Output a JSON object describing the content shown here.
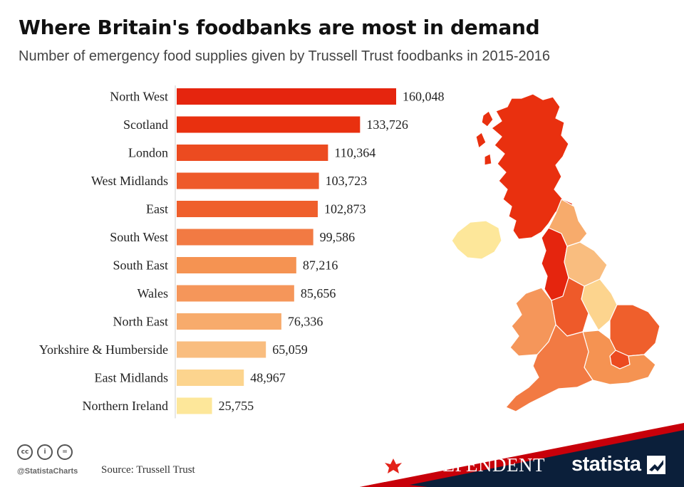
{
  "header": {
    "title": "Where Britain's foodbanks are most in demand",
    "subtitle": "Number of emergency food supplies given by Trussell Trust foodbanks in 2015-2016"
  },
  "chart_data": {
    "type": "bar",
    "orientation": "horizontal",
    "title": "Where Britain's foodbanks are most in demand",
    "subtitle": "Number of emergency food supplies given by Trussell Trust foodbanks in 2015-2016",
    "xlabel": "",
    "ylabel": "",
    "categories": [
      "North West",
      "Scotland",
      "London",
      "West Midlands",
      "East",
      "South West",
      "South East",
      "Wales",
      "North East",
      "Yorkshire & Humberside",
      "East Midlands",
      "Northern Ireland"
    ],
    "values": [
      160048,
      133726,
      110364,
      103723,
      102873,
      99586,
      87216,
      85656,
      76336,
      65059,
      48967,
      25755
    ],
    "value_labels": [
      "160,048",
      "133,726",
      "110,364",
      "103,723",
      "102,873",
      "99,586",
      "87,216",
      "85,656",
      "76,336",
      "65,059",
      "48,967",
      "25,755"
    ],
    "colors": [
      "#e5250e",
      "#e9300f",
      "#ec4b20",
      "#ee5a2a",
      "#ef5f2c",
      "#f27a43",
      "#f59352",
      "#f5965a",
      "#f7ab6c",
      "#f9bd7f",
      "#fcd48e",
      "#fde79a"
    ],
    "xlim": [
      0,
      160048
    ],
    "grid": false,
    "legend": "none"
  },
  "map": {
    "regions": [
      {
        "name": "Scotland",
        "color": "#e9300f"
      },
      {
        "name": "Northern Ireland",
        "color": "#fde79a"
      },
      {
        "name": "North West",
        "color": "#e5250e"
      },
      {
        "name": "North East",
        "color": "#f7ab6c"
      },
      {
        "name": "Yorkshire & Humberside",
        "color": "#f9bd7f"
      },
      {
        "name": "East Midlands",
        "color": "#fcd48e"
      },
      {
        "name": "West Midlands",
        "color": "#ee5a2a"
      },
      {
        "name": "Wales",
        "color": "#f5965a"
      },
      {
        "name": "East",
        "color": "#ef5f2c"
      },
      {
        "name": "London",
        "color": "#ec4b20"
      },
      {
        "name": "South East",
        "color": "#f59352"
      },
      {
        "name": "South West",
        "color": "#f27a43"
      }
    ]
  },
  "footer": {
    "handle": "@StatistaCharts",
    "source": "Source: Trussell Trust",
    "cc_icons": [
      "cc-icon",
      "attribution-icon",
      "no-derivatives-icon"
    ],
    "cc_labels": [
      "cc",
      "i",
      "="
    ],
    "partner": "INDEPENDENT",
    "brand": "statista",
    "banner_color": "#c8000a",
    "brand_color": "#0b1f3a"
  }
}
